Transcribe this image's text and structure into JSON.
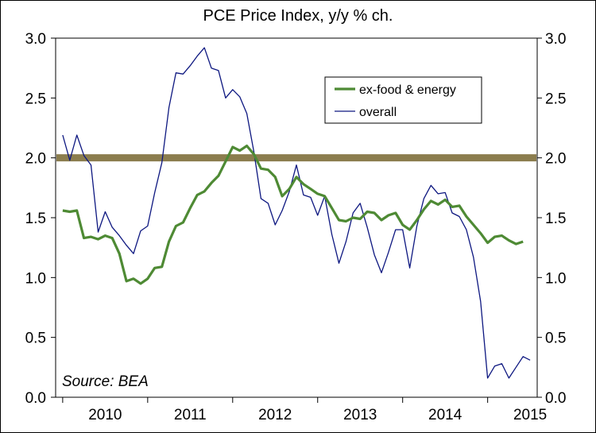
{
  "chart_data": {
    "type": "line",
    "title": "PCE Price Index, y/y % ch.",
    "source_note": "Source: BEA",
    "ylim": [
      0,
      3
    ],
    "y_ticks": [
      "0.0",
      "0.5",
      "1.0",
      "1.5",
      "2.0",
      "2.5",
      "3.0"
    ],
    "x_tick_labels": [
      "2010",
      "2011",
      "2012",
      "2013",
      "2014",
      "2015"
    ],
    "x_range": [
      2009.917,
      2015.583
    ],
    "grid": false,
    "legend_position": "top-right",
    "reference_line": {
      "value": 2.0,
      "color": "#8B7D4E"
    },
    "series": [
      {
        "name": "ex-food & energy",
        "color": "#4E8A34",
        "points": [
          [
            2010.0,
            1.56
          ],
          [
            2010.083,
            1.55
          ],
          [
            2010.167,
            1.56
          ],
          [
            2010.25,
            1.33
          ],
          [
            2010.333,
            1.34
          ],
          [
            2010.417,
            1.32
          ],
          [
            2010.5,
            1.35
          ],
          [
            2010.583,
            1.33
          ],
          [
            2010.667,
            1.2
          ],
          [
            2010.75,
            0.97
          ],
          [
            2010.833,
            0.99
          ],
          [
            2010.917,
            0.95
          ],
          [
            2011.0,
            0.99
          ],
          [
            2011.083,
            1.08
          ],
          [
            2011.167,
            1.09
          ],
          [
            2011.25,
            1.3
          ],
          [
            2011.333,
            1.43
          ],
          [
            2011.417,
            1.46
          ],
          [
            2011.5,
            1.58
          ],
          [
            2011.583,
            1.69
          ],
          [
            2011.667,
            1.72
          ],
          [
            2011.75,
            1.79
          ],
          [
            2011.833,
            1.85
          ],
          [
            2011.917,
            1.97
          ],
          [
            2012.0,
            2.09
          ],
          [
            2012.083,
            2.06
          ],
          [
            2012.167,
            2.1
          ],
          [
            2012.25,
            2.03
          ],
          [
            2012.333,
            1.91
          ],
          [
            2012.417,
            1.9
          ],
          [
            2012.5,
            1.84
          ],
          [
            2012.583,
            1.68
          ],
          [
            2012.667,
            1.74
          ],
          [
            2012.75,
            1.84
          ],
          [
            2012.833,
            1.78
          ],
          [
            2012.917,
            1.74
          ],
          [
            2013.0,
            1.7
          ],
          [
            2013.083,
            1.68
          ],
          [
            2013.167,
            1.58
          ],
          [
            2013.25,
            1.48
          ],
          [
            2013.333,
            1.47
          ],
          [
            2013.417,
            1.5
          ],
          [
            2013.5,
            1.49
          ],
          [
            2013.583,
            1.55
          ],
          [
            2013.667,
            1.54
          ],
          [
            2013.75,
            1.48
          ],
          [
            2013.833,
            1.52
          ],
          [
            2013.917,
            1.54
          ],
          [
            2014.0,
            1.44
          ],
          [
            2014.083,
            1.4
          ],
          [
            2014.167,
            1.48
          ],
          [
            2014.25,
            1.57
          ],
          [
            2014.333,
            1.64
          ],
          [
            2014.417,
            1.61
          ],
          [
            2014.5,
            1.65
          ],
          [
            2014.583,
            1.59
          ],
          [
            2014.667,
            1.6
          ],
          [
            2014.75,
            1.51
          ],
          [
            2014.833,
            1.44
          ],
          [
            2014.917,
            1.37
          ],
          [
            2015.0,
            1.29
          ],
          [
            2015.083,
            1.34
          ],
          [
            2015.167,
            1.35
          ],
          [
            2015.25,
            1.31
          ],
          [
            2015.333,
            1.28
          ],
          [
            2015.417,
            1.3
          ]
        ]
      },
      {
        "name": "overall",
        "color": "#0D1780",
        "points": [
          [
            2010.0,
            2.19
          ],
          [
            2010.083,
            1.98
          ],
          [
            2010.167,
            2.19
          ],
          [
            2010.25,
            2.02
          ],
          [
            2010.333,
            1.94
          ],
          [
            2010.417,
            1.38
          ],
          [
            2010.5,
            1.55
          ],
          [
            2010.583,
            1.42
          ],
          [
            2010.667,
            1.35
          ],
          [
            2010.75,
            1.27
          ],
          [
            2010.833,
            1.2
          ],
          [
            2010.917,
            1.39
          ],
          [
            2011.0,
            1.43
          ],
          [
            2011.083,
            1.71
          ],
          [
            2011.167,
            1.96
          ],
          [
            2011.25,
            2.42
          ],
          [
            2011.333,
            2.71
          ],
          [
            2011.417,
            2.7
          ],
          [
            2011.5,
            2.77
          ],
          [
            2011.583,
            2.85
          ],
          [
            2011.667,
            2.92
          ],
          [
            2011.75,
            2.75
          ],
          [
            2011.833,
            2.73
          ],
          [
            2011.917,
            2.5
          ],
          [
            2012.0,
            2.57
          ],
          [
            2012.083,
            2.51
          ],
          [
            2012.167,
            2.37
          ],
          [
            2012.25,
            2.05
          ],
          [
            2012.333,
            1.66
          ],
          [
            2012.417,
            1.62
          ],
          [
            2012.5,
            1.44
          ],
          [
            2012.583,
            1.56
          ],
          [
            2012.667,
            1.72
          ],
          [
            2012.75,
            1.94
          ],
          [
            2012.833,
            1.69
          ],
          [
            2012.917,
            1.67
          ],
          [
            2013.0,
            1.52
          ],
          [
            2013.083,
            1.68
          ],
          [
            2013.167,
            1.36
          ],
          [
            2013.25,
            1.12
          ],
          [
            2013.333,
            1.3
          ],
          [
            2013.417,
            1.54
          ],
          [
            2013.5,
            1.62
          ],
          [
            2013.583,
            1.42
          ],
          [
            2013.667,
            1.19
          ],
          [
            2013.75,
            1.04
          ],
          [
            2013.833,
            1.21
          ],
          [
            2013.917,
            1.4
          ],
          [
            2014.0,
            1.4
          ],
          [
            2014.083,
            1.08
          ],
          [
            2014.167,
            1.43
          ],
          [
            2014.25,
            1.66
          ],
          [
            2014.333,
            1.77
          ],
          [
            2014.417,
            1.7
          ],
          [
            2014.5,
            1.71
          ],
          [
            2014.583,
            1.54
          ],
          [
            2014.667,
            1.51
          ],
          [
            2014.75,
            1.4
          ],
          [
            2014.833,
            1.17
          ],
          [
            2014.917,
            0.8
          ],
          [
            2015.0,
            0.16
          ],
          [
            2015.083,
            0.26
          ],
          [
            2015.167,
            0.28
          ],
          [
            2015.25,
            0.16
          ],
          [
            2015.333,
            0.25
          ],
          [
            2015.417,
            0.34
          ],
          [
            2015.5,
            0.31
          ]
        ]
      }
    ]
  }
}
